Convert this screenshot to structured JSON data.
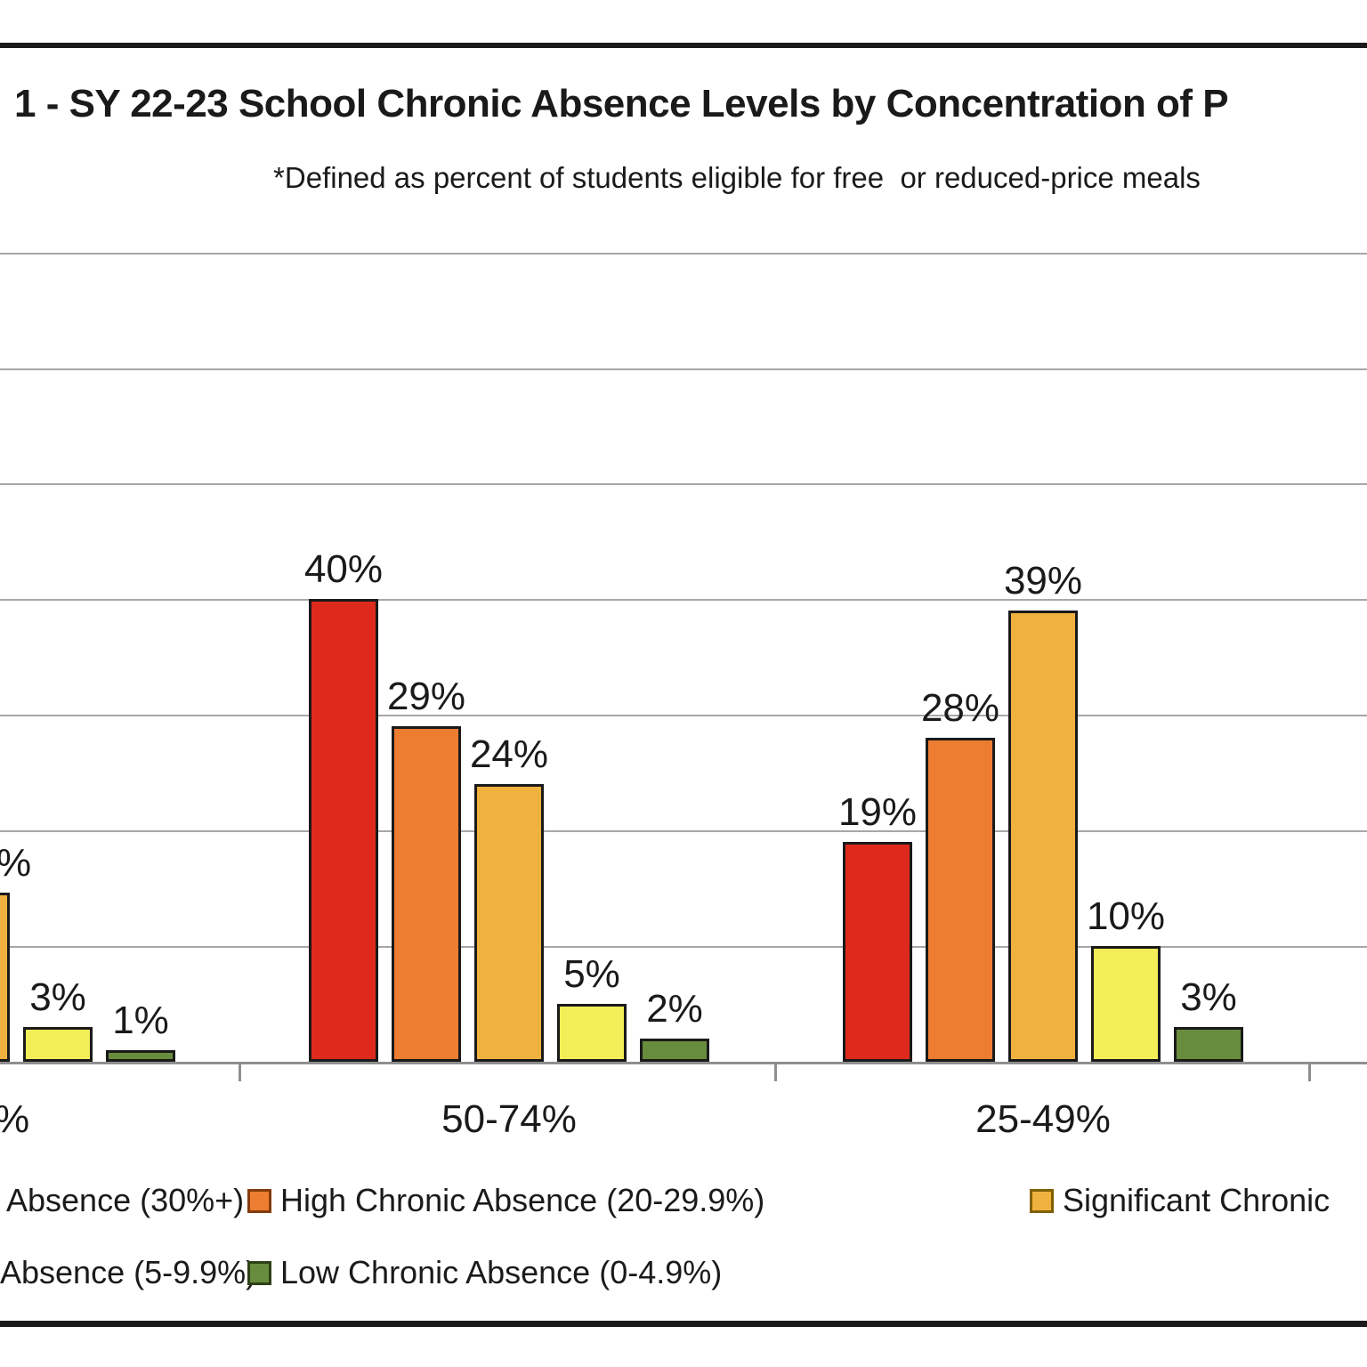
{
  "title": "1 - SY 22-23 School Chronic Absence Levels by Concentration of P",
  "subtitle": "*Defined as percent of students eligible for free  or reduced-price meals",
  "colors": {
    "text": "#1a1a1a",
    "bar_border": "#1a1a1a",
    "gridline": "#a7a7a7",
    "axis": "#8f8f8f",
    "red": "#de2a1c",
    "orange": "#ed7d31",
    "gold": "#f0b23e",
    "yellow": "#f2ee58",
    "green": "#688c3e",
    "swatch_border_orange": "#843c0c",
    "swatch_border_gold": "#7f6000",
    "swatch_border_green": "#2d4016"
  },
  "chart_data": {
    "type": "bar",
    "title": "1 - SY 22-23 School Chronic Absence Levels by Concentration of P (cut off at both sides)",
    "subtitle": "*Defined as percent of students eligible for free  or reduced-price meals",
    "ylabel": "",
    "xlabel": "",
    "y_axis": {
      "min": 0,
      "max": 70,
      "gridline_interval_pct": 10,
      "tick_labels_visible": false,
      "grid": true
    },
    "legend_position": "bottom",
    "series_order": [
      "red",
      "orange",
      "gold",
      "yellow",
      "green"
    ],
    "groups": [
      {
        "category_label": "%",
        "category_note": "leftmost group cut off at left edge of screenshot",
        "bars": [
          {
            "series": "gold",
            "slot": 2,
            "value": 14.6,
            "label": "%",
            "note": "bar and label partially cut off"
          },
          {
            "series": "yellow",
            "slot": 3,
            "value": 3,
            "label": "3%"
          },
          {
            "series": "green",
            "slot": 4,
            "value": 1,
            "label": "1%"
          }
        ]
      },
      {
        "category_label": "50-74%",
        "bars": [
          {
            "series": "red",
            "slot": 0,
            "value": 40,
            "label": "40%"
          },
          {
            "series": "orange",
            "slot": 1,
            "value": 29,
            "label": "29%"
          },
          {
            "series": "gold",
            "slot": 2,
            "value": 24,
            "label": "24%"
          },
          {
            "series": "yellow",
            "slot": 3,
            "value": 5,
            "label": "5%"
          },
          {
            "series": "green",
            "slot": 4,
            "value": 2,
            "label": "2%"
          }
        ]
      },
      {
        "category_label": "25-49%",
        "bars": [
          {
            "series": "red",
            "slot": 0,
            "value": 19,
            "label": "19%"
          },
          {
            "series": "orange",
            "slot": 1,
            "value": 28,
            "label": "28%"
          },
          {
            "series": "gold",
            "slot": 2,
            "value": 39,
            "label": "39%"
          },
          {
            "series": "yellow",
            "slot": 3,
            "value": 10,
            "label": "10%"
          },
          {
            "series": "green",
            "slot": 4,
            "value": 3,
            "label": "3%"
          }
        ]
      }
    ]
  },
  "legend": {
    "rows": [
      [
        {
          "label": "Absence (30%+)",
          "swatch": null,
          "note": "swatch and start of label cut off at left edge"
        },
        {
          "label": "High Chronic Absence (20-29.9%)",
          "swatch": "orange"
        },
        {
          "label": "Significant Chronic",
          "swatch": "gold",
          "note": "label cut off at right edge"
        }
      ],
      [
        {
          "label": "Absence (5-9.9%)",
          "swatch": null,
          "note": "swatch and start of label cut off at left edge"
        },
        {
          "label": "Low Chronic Absence (0-4.9%)",
          "swatch": "green"
        }
      ]
    ]
  }
}
